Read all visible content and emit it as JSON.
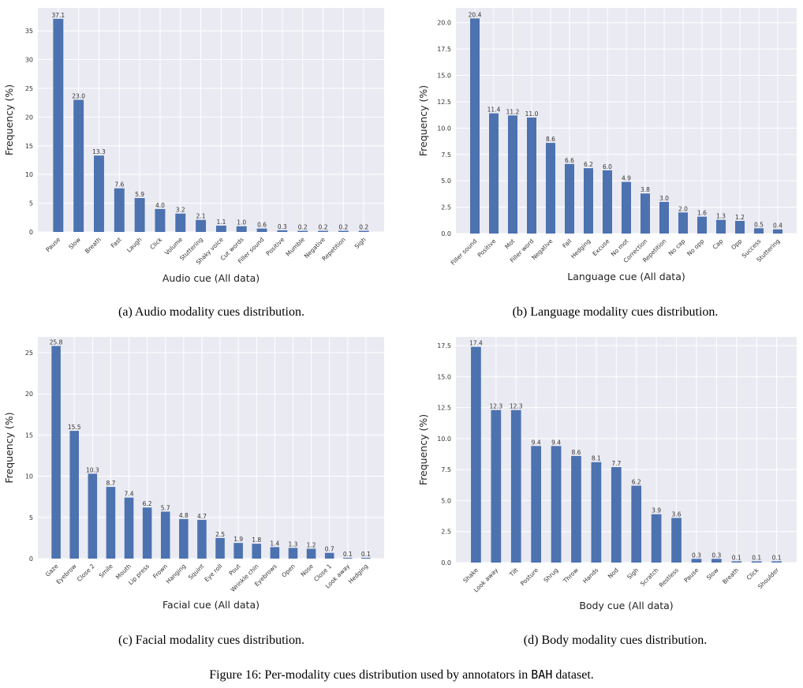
{
  "colors": {
    "bar": "#4c72b0",
    "background": "#eaeaf2",
    "grid": "#ffffff"
  },
  "chart_data": [
    {
      "type": "bar",
      "xlabel": "Audio cue (All data)",
      "ylabel": "Frequency (%)",
      "ylim": [
        0,
        39
      ],
      "yticks": [
        0,
        5,
        10,
        15,
        20,
        25,
        30,
        35
      ],
      "ytick_decimals": 0,
      "grid": true,
      "categories": [
        "Pause",
        "Slow",
        "Breath",
        "Fast",
        "Laugh",
        "Click",
        "Volume",
        "Stuttering",
        "Shaky voice",
        "Cut words",
        "Filler sound",
        "Positive",
        "Mumble",
        "Negative",
        "Repetition",
        "Sigh"
      ],
      "values": [
        37.1,
        23.0,
        13.3,
        7.6,
        5.9,
        4.0,
        3.2,
        2.1,
        1.1,
        1.0,
        0.6,
        0.3,
        0.2,
        0.2,
        0.2,
        0.2
      ]
    },
    {
      "type": "bar",
      "xlabel": "Language cue (All data)",
      "ylabel": "Frequency (%)",
      "ylim": [
        0,
        21.4
      ],
      "yticks": [
        0,
        2.5,
        5,
        7.5,
        10,
        12.5,
        15,
        17.5,
        20
      ],
      "ytick_decimals": 1,
      "grid": true,
      "categories": [
        "Filler sound",
        "Positive",
        "Mot",
        "Filler word",
        "Negative",
        "Fail",
        "Hedging",
        "Excuse",
        "No mot",
        "Correction",
        "Repetition",
        "No cap",
        "No opp",
        "Cap",
        "Opp",
        "Success",
        "Stuttering"
      ],
      "values": [
        20.4,
        11.4,
        11.2,
        11.0,
        8.6,
        6.6,
        6.2,
        6.0,
        4.9,
        3.8,
        3.0,
        2.0,
        1.6,
        1.3,
        1.2,
        0.5,
        0.4
      ]
    },
    {
      "type": "bar",
      "xlabel": "Facial cue (All data)",
      "ylabel": "Frequency (%)",
      "ylim": [
        0,
        26.9
      ],
      "yticks": [
        0,
        5,
        10,
        15,
        20,
        25
      ],
      "ytick_decimals": 0,
      "grid": true,
      "categories": [
        "Gaze",
        "Eyebrow",
        "Close 2",
        "Smile",
        "Mouth",
        "Lip press",
        "Frown",
        "Hanging",
        "Squint",
        "Eye roll",
        "Pout",
        "Wrinkle chin",
        "Eyebrows",
        "Open",
        "Nose",
        "Close 1",
        "Look away",
        "Hedging"
      ],
      "values": [
        25.8,
        15.5,
        10.3,
        8.7,
        7.4,
        6.2,
        5.7,
        4.8,
        4.7,
        2.5,
        1.9,
        1.8,
        1.4,
        1.3,
        1.2,
        0.7,
        0.1,
        0.1
      ]
    },
    {
      "type": "bar",
      "xlabel": "Body cue (All data)",
      "ylabel": "Frequency (%)",
      "ylim": [
        0,
        18.2
      ],
      "yticks": [
        0,
        2.5,
        5,
        7.5,
        10,
        12.5,
        15,
        17.5
      ],
      "ytick_decimals": 1,
      "grid": true,
      "categories": [
        "Shake",
        "Look away",
        "Tilt",
        "Posture",
        "Shrug",
        "Throw",
        "Hands",
        "Nod",
        "Sigh",
        "Scratch",
        "Restless",
        "Pause",
        "Slow",
        "Breath",
        "Click",
        "Shoulder"
      ],
      "values": [
        17.4,
        12.3,
        12.3,
        9.4,
        9.4,
        8.6,
        8.1,
        7.7,
        6.2,
        3.9,
        3.6,
        0.3,
        0.3,
        0.1,
        0.1,
        0.1
      ]
    }
  ],
  "captions": {
    "a": "(a) Audio modality cues distribution.",
    "b": "(b) Language modality cues distribution.",
    "c": "(c) Facial modality cues distribution.",
    "d": "(d) Body modality cues distribution.",
    "figure_prefix": "Figure 16: Per-modality cues distribution used by annotators in ",
    "figure_dataset": "BAH",
    "figure_suffix": " dataset."
  }
}
